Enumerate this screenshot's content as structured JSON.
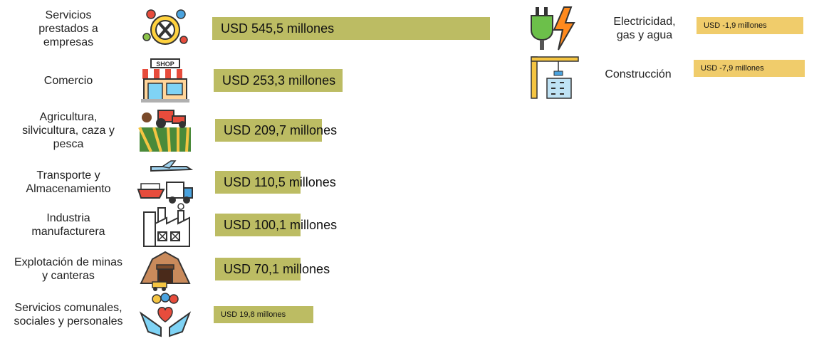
{
  "colors": {
    "positive": "#bcbc63",
    "negative": "#f0cc6b"
  },
  "chart_data": {
    "type": "bar",
    "orientation": "horizontal",
    "unit": "USD millones",
    "categories": [
      "Servicios prestados a empresas",
      "Comercio",
      "Agricultura, silvicultura, caza y pesca",
      "Transporte y Almacenamiento",
      "Industria manufacturera",
      "Explotación de minas y canteras",
      "Servicios comunales, sociales y personales",
      "Electricidad, gas y agua",
      "Construcción"
    ],
    "values": [
      545.5,
      253.3,
      209.7,
      110.5,
      100.1,
      70.1,
      19.8,
      -1.9,
      -7.9
    ],
    "positive": [
      {
        "label_lines": [
          "Servicios",
          "prestados a",
          "empresas"
        ],
        "value": 545.5,
        "text": "USD 545,5 millones",
        "icon": "business-services-icon"
      },
      {
        "label_lines": [
          "Comercio"
        ],
        "value": 253.3,
        "text": "USD 253,3 millones",
        "icon": "shop-icon"
      },
      {
        "label_lines": [
          "Agricultura,",
          "silvicultura, caza y",
          "pesca"
        ],
        "value": 209.7,
        "text": "USD 209,7 millones",
        "icon": "tractor-icon"
      },
      {
        "label_lines": [
          "Transporte y",
          "Almacenamiento"
        ],
        "value": 110.5,
        "text": "USD 110,5 millones",
        "icon": "transport-icon"
      },
      {
        "label_lines": [
          "Industria",
          "manufacturera"
        ],
        "value": 100.1,
        "text": "USD 100,1 millones",
        "icon": "factory-icon"
      },
      {
        "label_lines": [
          "Explotación de minas",
          "y canteras"
        ],
        "value": 70.1,
        "text": "USD 70,1 millones",
        "icon": "mine-icon"
      },
      {
        "label_lines": [
          "Servicios comunales,",
          "sociales y personales"
        ],
        "value": 19.8,
        "text": "USD 19,8 millones",
        "icon": "community-icon"
      }
    ],
    "negative": [
      {
        "label_lines": [
          "Electricidad,",
          "gas y agua"
        ],
        "value": -1.9,
        "text": "USD -1,9 millones",
        "icon": "plug-bolt-icon"
      },
      {
        "label_lines": [
          "Construcción"
        ],
        "value": -7.9,
        "text": "USD -7,9 millones",
        "icon": "construction-crane-icon"
      }
    ]
  }
}
